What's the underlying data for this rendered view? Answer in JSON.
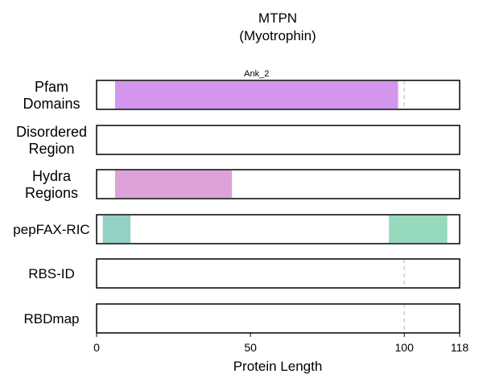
{
  "chart_data": {
    "type": "bar",
    "title": "MTPN",
    "subtitle": "(Myotrophin)",
    "xlabel": "Protein Length",
    "xlim": [
      0,
      118
    ],
    "xticks": [
      {
        "value": 0,
        "label": "0"
      },
      {
        "value": 50,
        "label": "50"
      },
      {
        "value": 100,
        "label": "100"
      },
      {
        "value": 118,
        "label": "118"
      }
    ],
    "reference_line_x": 100,
    "tracks": [
      {
        "label": "Pfam\nDomains",
        "segments": [
          {
            "start": 6,
            "end": 98,
            "color": "#d396ec",
            "label": "Ank_2"
          }
        ],
        "reference_line": true
      },
      {
        "label": "Disordered\nRegion",
        "segments": [],
        "reference_line": false
      },
      {
        "label": "Hydra\nRegions",
        "segments": [
          {
            "start": 6,
            "end": 44,
            "color": "#dda2da"
          }
        ],
        "reference_line": false
      },
      {
        "label": "pepFAX-RIC",
        "segments": [
          {
            "start": 2,
            "end": 11,
            "color": "#93d0c5"
          },
          {
            "start": 95,
            "end": 114,
            "color": "#97d9bd"
          }
        ],
        "reference_line": false
      },
      {
        "label": "RBS-ID",
        "segments": [],
        "reference_line": true
      },
      {
        "label": "RBDmap",
        "segments": [],
        "reference_line": true
      }
    ]
  }
}
